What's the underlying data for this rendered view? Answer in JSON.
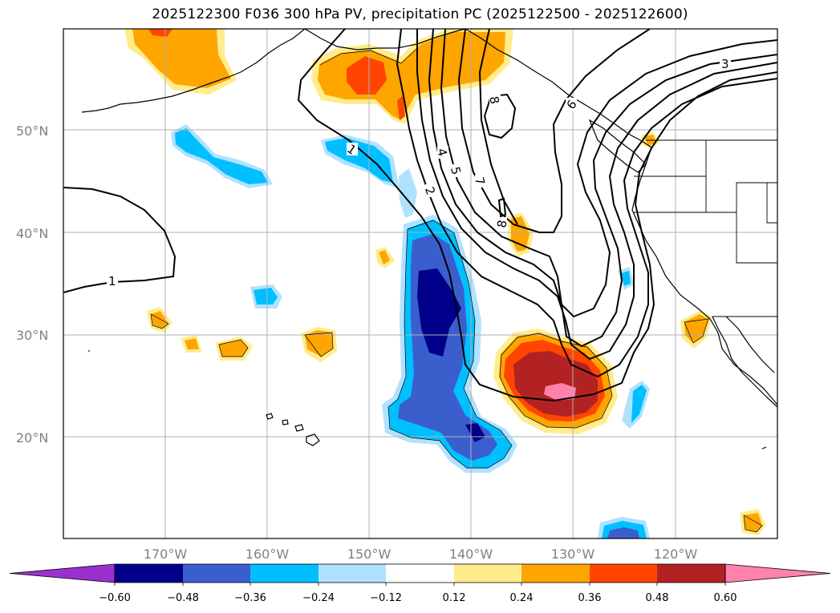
{
  "title": "2025122300 F036 300 hPa PV, precipitation PC (2025122500 - 2025122600)",
  "map": {
    "lat_labels": [
      "50°N",
      "40°N",
      "30°N",
      "20°N"
    ],
    "lon_labels": [
      "170°W",
      "160°W",
      "150°W",
      "140°W",
      "130°W",
      "120°W"
    ],
    "pv_contour_labels": [
      "1",
      "1",
      "2",
      "3",
      "4",
      "5",
      "6",
      "7",
      "8",
      "8"
    ]
  },
  "colorbar": {
    "tick_labels": [
      "−0.60",
      "−0.48",
      "−0.36",
      "−0.24",
      "−0.12",
      "0.12",
      "0.24",
      "0.36",
      "0.48",
      "0.60"
    ],
    "colors": [
      "#9b30d0",
      "#00008b",
      "#3a5fcd",
      "#00bfff",
      "#b0e2ff",
      "#ffffff",
      "#ffec8b",
      "#ffa500",
      "#ff4500",
      "#b22222",
      "#ff82ab"
    ]
  }
}
